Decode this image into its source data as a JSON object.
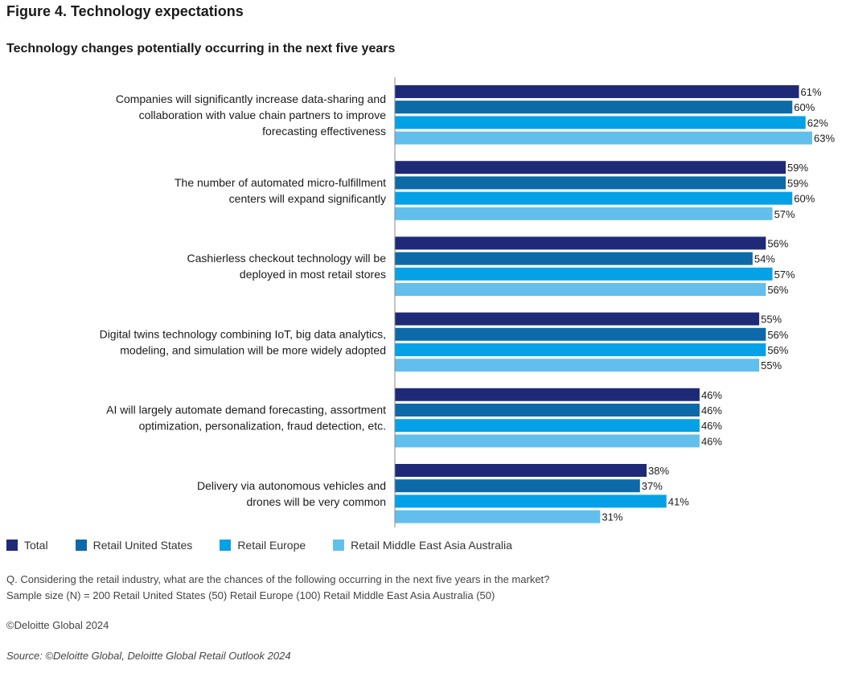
{
  "figure_title": "Figure 4. Technology expectations",
  "chart_data": {
    "type": "bar",
    "orientation": "horizontal",
    "title": "Technology changes potentially occurring in the next five years",
    "xlim": [
      0,
      63
    ],
    "categories": [
      [
        "Companies will significantly increase data-sharing and",
        "collaboration with value chain partners to improve",
        "forecasting effectiveness"
      ],
      [
        "The number of automated micro-fulfillment",
        "centers will expand significantly"
      ],
      [
        "Cashierless checkout technology will be",
        "deployed in most retail stores"
      ],
      [
        "Digital twins technology combining IoT, big data analytics,",
        "modeling, and simulation will be more widely adopted"
      ],
      [
        "AI will largely automate demand forecasting, assortment",
        "optimization, personalization, fraud detection, etc."
      ],
      [
        "Delivery via autonomous vehicles and",
        "drones will be very common"
      ]
    ],
    "series": [
      {
        "name": "Total",
        "color": "#1e2a78",
        "values": [
          61,
          59,
          56,
          55,
          46,
          38
        ]
      },
      {
        "name": "Retail United States",
        "color": "#0d6aa8",
        "values": [
          60,
          59,
          54,
          56,
          46,
          37
        ]
      },
      {
        "name": "Retail Europe",
        "color": "#05a1e6",
        "values": [
          62,
          60,
          57,
          56,
          46,
          41
        ]
      },
      {
        "name": "Retail Middle East Asia Australia",
        "color": "#62bfec",
        "values": [
          63,
          57,
          56,
          55,
          46,
          31
        ]
      }
    ],
    "value_suffix": "%",
    "legend_position": "bottom-left"
  },
  "question": "Q. Considering the retail industry, what are the chances of the following occurring in the next five years in the market?",
  "sample_size": "Sample size (N) = 200 Retail United States (50)  Retail Europe (100) Retail Middle East Asia Australia (50)",
  "copyright": "©Deloitte Global 2024",
  "source": "Source: ©Deloitte Global, Deloitte Global Retail Outlook 2024"
}
